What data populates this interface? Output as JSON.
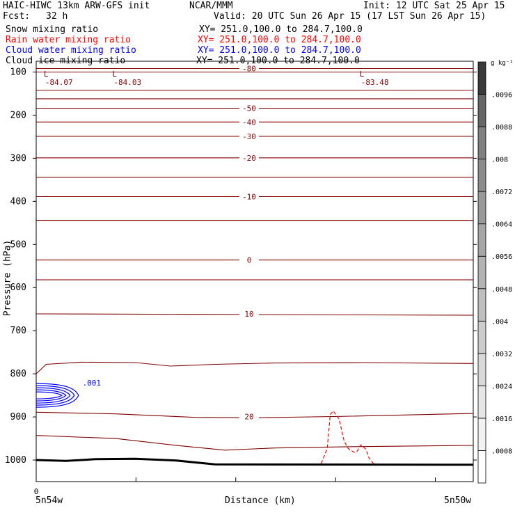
{
  "header": {
    "model": "HAIC-HIWC 13km ARW-GFS init",
    "org": "NCAR/MMM",
    "init": "Init: 12 UTC Sat 25 Apr 15",
    "fcst_label": "Fcst:",
    "fcst_value": "32 h",
    "valid": "Valid: 20 UTC Sun 26 Apr 15 (17 LST Sun 26 Apr 15)",
    "fields": [
      {
        "name": "Snow mixing ratio",
        "xy": "XY= 251.0,100.0 to 284.7,100.0",
        "color": "#000000"
      },
      {
        "name": "Rain water mixing ratio",
        "xy": "XY= 251.0,100.0 to 284.7,100.0",
        "color": "#ff0000"
      },
      {
        "name": "Cloud water mixing ratio",
        "xy": "XY= 251.0,100.0 to 284.7,100.0",
        "color": "#0000ff"
      },
      {
        "name": "Cloud ice mixing ratio",
        "xy": "XY= 251.0,100.0 to 284.7,100.0",
        "color": "#000000"
      }
    ]
  },
  "chart_data": {
    "type": "line",
    "ylabel": "Pressure (hPa)",
    "xlabel": "Distance (km)",
    "ylim": [
      1050,
      75
    ],
    "xlim": [
      0,
      440
    ],
    "y_ticks": [
      100,
      200,
      300,
      400,
      500,
      600,
      700,
      800,
      900,
      1000
    ],
    "x_tick_labels": [
      "0"
    ],
    "x_end_labels": [
      "5n54w",
      "5n50w"
    ],
    "colors": {
      "temperature": "#800000",
      "rain": "#ff0000",
      "cloud": "#0000ff",
      "ground": "#000000"
    },
    "temperature_contours": [
      {
        "level": -80,
        "label": "-80",
        "points": [
          [
            0,
            92
          ],
          [
            440,
            92
          ]
        ]
      },
      {
        "level": -70,
        "points": [
          [
            0,
            100
          ],
          [
            440,
            100
          ]
        ]
      },
      {
        "level": -60,
        "points": [
          [
            0,
            142
          ],
          [
            440,
            142
          ]
        ]
      },
      {
        "level": -55,
        "points": [
          [
            0,
            162
          ],
          [
            440,
            162
          ]
        ]
      },
      {
        "level": -50,
        "label": "-50",
        "points": [
          [
            0,
            184
          ],
          [
            440,
            184
          ]
        ]
      },
      {
        "level": -40,
        "label": "-40",
        "points": [
          [
            0,
            216
          ],
          [
            440,
            216
          ]
        ]
      },
      {
        "level": -30,
        "label": "-30",
        "points": [
          [
            0,
            249
          ],
          [
            440,
            249
          ]
        ]
      },
      {
        "level": -20,
        "label": "-20",
        "points": [
          [
            0,
            299
          ],
          [
            440,
            299
          ]
        ]
      },
      {
        "level": -15,
        "points": [
          [
            0,
            344
          ],
          [
            440,
            344
          ]
        ]
      },
      {
        "level": -10,
        "label": "-10",
        "points": [
          [
            0,
            389
          ],
          [
            440,
            389
          ]
        ]
      },
      {
        "level": -5,
        "points": [
          [
            0,
            444
          ],
          [
            440,
            444
          ]
        ]
      },
      {
        "level": 0,
        "label": "0",
        "points": [
          [
            0,
            536
          ],
          [
            440,
            536
          ]
        ]
      },
      {
        "level": 5,
        "points": [
          [
            0,
            582
          ],
          [
            440,
            582
          ]
        ]
      },
      {
        "level": 10,
        "label": "10",
        "points": [
          [
            0,
            661
          ],
          [
            440,
            664
          ]
        ]
      },
      {
        "level": 15,
        "points": [
          [
            0,
            800
          ],
          [
            10,
            778
          ],
          [
            45,
            773
          ],
          [
            100,
            774
          ],
          [
            135,
            782
          ],
          [
            180,
            778
          ],
          [
            240,
            775
          ],
          [
            330,
            774
          ],
          [
            440,
            776
          ]
        ]
      },
      {
        "level": 20,
        "label": "20",
        "points": [
          [
            0,
            889
          ],
          [
            80,
            893
          ],
          [
            160,
            901
          ],
          [
            220,
            902
          ],
          [
            300,
            899
          ],
          [
            440,
            892
          ]
        ]
      },
      {
        "level": 25,
        "points": [
          [
            0,
            943
          ],
          [
            80,
            950
          ],
          [
            145,
            967
          ],
          [
            190,
            977
          ],
          [
            240,
            972
          ],
          [
            320,
            969
          ],
          [
            440,
            966
          ]
        ]
      }
    ],
    "low_centers": [
      {
        "letter": "L",
        "value": "-84.07",
        "x": 2
      },
      {
        "letter": "L",
        "value": "-84.03",
        "x": 71
      },
      {
        "letter": "L",
        "value": "-83.48",
        "x": 320
      }
    ],
    "cloud_water": {
      "label": ".001",
      "center_x": 30,
      "center_p": 850
    },
    "rain_water_contour": [
      [
        287,
        1008
      ],
      [
        293,
        973
      ],
      [
        296,
        895
      ],
      [
        299,
        886
      ],
      [
        305,
        905
      ],
      [
        310,
        956
      ],
      [
        314,
        973
      ],
      [
        320,
        982
      ],
      [
        323,
        980
      ],
      [
        327,
        965
      ],
      [
        332,
        975
      ],
      [
        335,
        995
      ],
      [
        340,
        1010
      ]
    ],
    "ground_pressure": [
      [
        0,
        1000
      ],
      [
        30,
        1002
      ],
      [
        60,
        998
      ],
      [
        100,
        997
      ],
      [
        140,
        1001
      ],
      [
        180,
        1010
      ],
      [
        440,
        1011
      ]
    ],
    "colorbar": {
      "unit": "g kg⁻¹",
      "labels": [
        ".0008",
        ".0016",
        ".0024",
        ".0032",
        ".004",
        ".0048",
        ".0056",
        ".0064",
        ".0072",
        ".008",
        ".0088",
        ".0096"
      ],
      "fills": [
        "#ffffff",
        "#f2f2f2",
        "#e6e6e6",
        "#d9d9d9",
        "#cccccc",
        "#bfbfbf",
        "#b3b3b3",
        "#a6a6a6",
        "#999999",
        "#8c8c8c",
        "#808080",
        "#666666",
        "#3a3a3a"
      ]
    }
  }
}
